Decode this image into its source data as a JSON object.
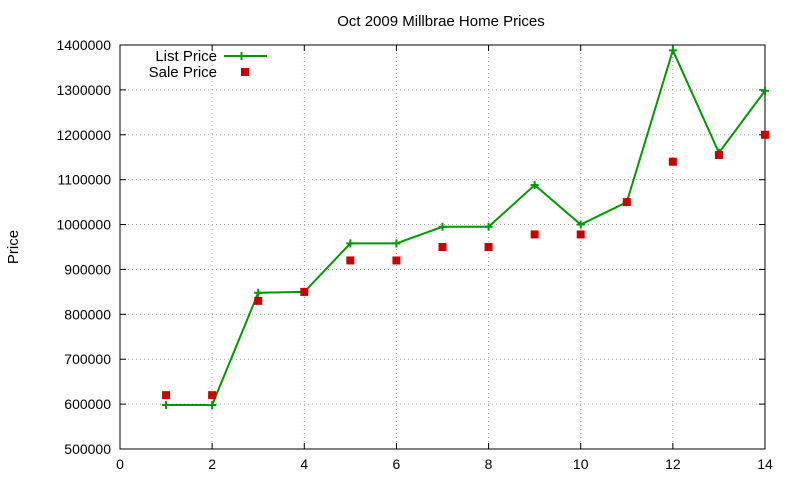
{
  "chart_data": {
    "type": "line",
    "title": "Oct 2009 Millbrae Home Prices",
    "xlabel": "",
    "ylabel": "Price",
    "xlim": [
      0,
      14
    ],
    "ylim": [
      500000,
      1400000
    ],
    "x_ticks": [
      0,
      2,
      4,
      6,
      8,
      10,
      12,
      14
    ],
    "y_ticks": [
      500000,
      600000,
      700000,
      800000,
      900000,
      1000000,
      1100000,
      1200000,
      1300000,
      1400000
    ],
    "grid": true,
    "legend_position": "top-left",
    "series": [
      {
        "name": "List Price",
        "style": "line-with-plus-markers",
        "color": "#009900",
        "x": [
          1,
          2,
          3,
          4,
          5,
          6,
          7,
          8,
          9,
          10,
          11,
          12,
          13,
          14
        ],
        "values": [
          598000,
          598000,
          848000,
          850000,
          958000,
          958000,
          995000,
          995000,
          1088000,
          1000000,
          1050000,
          1388000,
          1160000,
          1298000
        ]
      },
      {
        "name": "Sale Price",
        "style": "square-markers",
        "color": "#cc0000",
        "x": [
          1,
          2,
          3,
          4,
          5,
          6,
          7,
          8,
          9,
          10,
          11,
          12,
          13,
          14
        ],
        "values": [
          620000,
          620000,
          830000,
          850000,
          920000,
          920000,
          950000,
          950000,
          978000,
          978000,
          1050000,
          1140000,
          1155000,
          1200000
        ]
      }
    ]
  }
}
